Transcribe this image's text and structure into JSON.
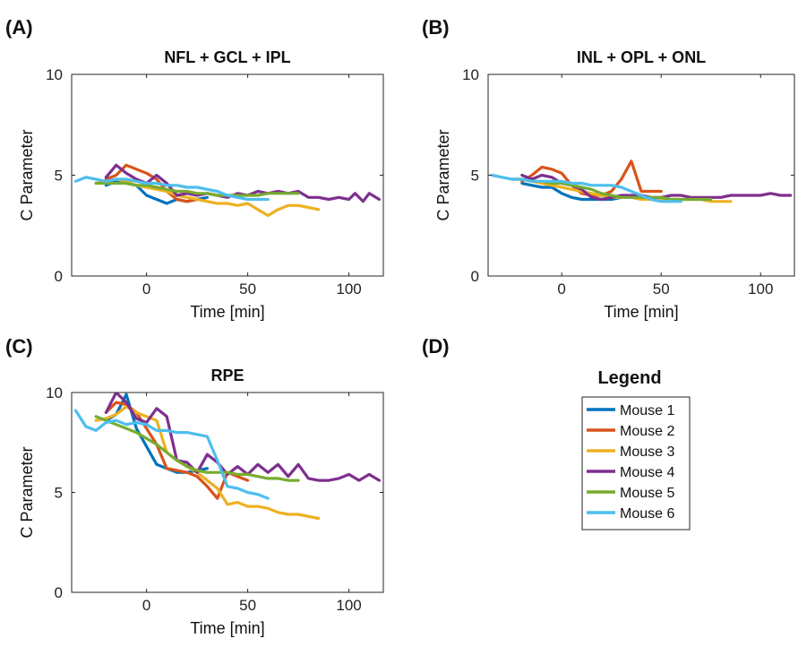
{
  "colors": {
    "Mouse 1": "#0072bd",
    "Mouse 2": "#d95319",
    "Mouse 3": "#edb120",
    "Mouse 4": "#7e2f8e",
    "Mouse 5": "#77ac30",
    "Mouse 6": "#4dbeee"
  },
  "legend": {
    "title": "Legend",
    "entries": [
      "Mouse 1",
      "Mouse 2",
      "Mouse 3",
      "Mouse 4",
      "Mouse 5",
      "Mouse 6"
    ]
  },
  "chart_data": [
    {
      "panel": "(A)",
      "type": "line",
      "title": "NFL + GCL + IPL",
      "xlabel": "Time [min]",
      "ylabel": "C Parameter",
      "xlim": [
        -37,
        117
      ],
      "ylim": [
        0,
        10
      ],
      "xticks": [
        0,
        50,
        100
      ],
      "yticks": [
        0,
        5,
        10
      ],
      "series": [
        {
          "name": "Mouse 1",
          "x": [
            -20,
            -15,
            -10,
            -5,
            0,
            5,
            10,
            15,
            20,
            25,
            30
          ],
          "y": [
            4.5,
            4.7,
            4.6,
            4.5,
            4.0,
            3.8,
            3.6,
            3.8,
            3.7,
            3.8,
            3.9
          ]
        },
        {
          "name": "Mouse 2",
          "x": [
            -20,
            -15,
            -10,
            -5,
            0,
            5,
            10,
            15,
            20,
            25
          ],
          "y": [
            4.8,
            5.0,
            5.5,
            5.3,
            5.1,
            4.8,
            4.2,
            3.8,
            3.7,
            3.8
          ]
        },
        {
          "name": "Mouse 3",
          "x": [
            -25,
            -20,
            -15,
            -10,
            -5,
            0,
            5,
            10,
            15,
            20,
            25,
            30,
            35,
            40,
            45,
            50,
            55,
            60,
            65,
            70,
            75,
            80,
            85
          ],
          "y": [
            4.6,
            4.7,
            4.8,
            4.7,
            4.5,
            4.4,
            4.3,
            4.2,
            4.0,
            3.9,
            3.8,
            3.7,
            3.6,
            3.6,
            3.5,
            3.6,
            3.3,
            3.0,
            3.3,
            3.5,
            3.5,
            3.4,
            3.3
          ]
        },
        {
          "name": "Mouse 4",
          "x": [
            -20,
            -15,
            -10,
            -5,
            0,
            5,
            10,
            15,
            20,
            25,
            30,
            35,
            40,
            45,
            50,
            55,
            60,
            65,
            70,
            75,
            80,
            85,
            90,
            95,
            100,
            103,
            107,
            110,
            115
          ],
          "y": [
            4.9,
            5.5,
            5.1,
            4.8,
            4.6,
            5.0,
            4.6,
            4.0,
            4.1,
            4.0,
            4.1,
            4.0,
            3.9,
            4.1,
            4.0,
            4.2,
            4.1,
            4.2,
            4.1,
            4.2,
            3.9,
            3.9,
            3.8,
            3.9,
            3.8,
            4.1,
            3.7,
            4.1,
            3.8
          ]
        },
        {
          "name": "Mouse 5",
          "x": [
            -25,
            -20,
            -15,
            -10,
            -5,
            0,
            5,
            10,
            15,
            20,
            25,
            30,
            35,
            40,
            45,
            50,
            55,
            60,
            65,
            70,
            75
          ],
          "y": [
            4.6,
            4.6,
            4.6,
            4.6,
            4.5,
            4.5,
            4.4,
            4.3,
            4.2,
            4.2,
            4.1,
            4.1,
            4.0,
            4.0,
            4.0,
            4.0,
            4.0,
            4.1,
            4.1,
            4.1,
            4.1
          ]
        },
        {
          "name": "Mouse 6",
          "x": [
            -35,
            -30,
            -25,
            -20,
            -15,
            -10,
            -5,
            0,
            5,
            10,
            15,
            20,
            25,
            30,
            35,
            40,
            45,
            50,
            55,
            60
          ],
          "y": [
            4.7,
            4.9,
            4.8,
            4.7,
            4.8,
            4.8,
            4.7,
            4.6,
            4.6,
            4.5,
            4.5,
            4.4,
            4.4,
            4.3,
            4.2,
            4.0,
            3.9,
            3.8,
            3.8,
            3.8
          ]
        }
      ]
    },
    {
      "panel": "(B)",
      "type": "line",
      "title": "INL + OPL + ONL",
      "xlabel": "Time [min]",
      "ylabel": "C Parameter",
      "xlim": [
        -37,
        117
      ],
      "ylim": [
        0,
        10
      ],
      "xticks": [
        0,
        50,
        100
      ],
      "yticks": [
        0,
        5,
        10
      ],
      "series": [
        {
          "name": "Mouse 1",
          "x": [
            -20,
            -15,
            -10,
            -5,
            0,
            5,
            10,
            15,
            20,
            25,
            30
          ],
          "y": [
            4.6,
            4.5,
            4.4,
            4.4,
            4.1,
            3.9,
            3.8,
            3.8,
            3.8,
            3.8,
            3.9
          ]
        },
        {
          "name": "Mouse 2",
          "x": [
            -20,
            -15,
            -10,
            -5,
            0,
            5,
            10,
            15,
            20,
            25,
            30,
            35,
            40,
            45,
            50
          ],
          "y": [
            4.7,
            5.0,
            5.4,
            5.3,
            5.1,
            4.5,
            4.1,
            4.0,
            4.0,
            4.2,
            4.8,
            5.7,
            4.2,
            4.2,
            4.2
          ]
        },
        {
          "name": "Mouse 3",
          "x": [
            -25,
            -20,
            -15,
            -10,
            -5,
            0,
            5,
            10,
            15,
            20,
            25,
            30,
            35,
            40,
            45,
            50,
            55,
            60,
            65,
            70,
            75,
            80,
            85
          ],
          "y": [
            4.8,
            4.8,
            4.7,
            4.6,
            4.5,
            4.4,
            4.3,
            4.2,
            4.1,
            4.0,
            3.9,
            3.9,
            3.9,
            3.8,
            3.8,
            3.8,
            3.8,
            3.8,
            3.8,
            3.8,
            3.7,
            3.7,
            3.7
          ]
        },
        {
          "name": "Mouse 4",
          "x": [
            -20,
            -15,
            -10,
            -5,
            0,
            5,
            10,
            15,
            20,
            25,
            30,
            35,
            40,
            45,
            50,
            55,
            60,
            65,
            70,
            75,
            80,
            85,
            90,
            95,
            100,
            105,
            110,
            115
          ],
          "y": [
            5.0,
            4.8,
            5.0,
            4.9,
            4.6,
            4.5,
            4.3,
            3.9,
            3.8,
            3.9,
            4.0,
            4.0,
            4.0,
            3.9,
            3.9,
            4.0,
            4.0,
            3.9,
            3.9,
            3.9,
            3.9,
            4.0,
            4.0,
            4.0,
            4.0,
            4.1,
            4.0,
            4.0
          ]
        },
        {
          "name": "Mouse 5",
          "x": [
            -25,
            -20,
            -15,
            -10,
            -5,
            0,
            5,
            10,
            15,
            20,
            25,
            30,
            35,
            40,
            45,
            50,
            55,
            60,
            65,
            70,
            75
          ],
          "y": [
            4.8,
            4.8,
            4.7,
            4.7,
            4.6,
            4.6,
            4.5,
            4.4,
            4.3,
            4.1,
            4.0,
            3.9,
            3.9,
            3.9,
            3.9,
            3.9,
            3.8,
            3.8,
            3.8,
            3.8,
            3.8
          ]
        },
        {
          "name": "Mouse 6",
          "x": [
            -35,
            -30,
            -25,
            -20,
            -15,
            -10,
            -5,
            0,
            5,
            10,
            15,
            20,
            25,
            30,
            35,
            40,
            45,
            50,
            55,
            60
          ],
          "y": [
            5.0,
            4.9,
            4.8,
            4.8,
            4.7,
            4.7,
            4.7,
            4.7,
            4.6,
            4.6,
            4.5,
            4.5,
            4.5,
            4.4,
            4.2,
            4.0,
            3.8,
            3.7,
            3.7,
            3.7
          ]
        }
      ]
    },
    {
      "panel": "(C)",
      "type": "line",
      "title": "RPE",
      "xlabel": "Time [min]",
      "ylabel": "C Parameter",
      "xlim": [
        -37,
        117
      ],
      "ylim": [
        0,
        10
      ],
      "xticks": [
        0,
        50,
        100
      ],
      "yticks": [
        0,
        5,
        10
      ],
      "series": [
        {
          "name": "Mouse 1",
          "x": [
            -20,
            -15,
            -10,
            -5,
            0,
            5,
            10,
            15,
            20,
            25,
            30
          ],
          "y": [
            8.6,
            8.9,
            9.9,
            8.2,
            7.3,
            6.4,
            6.2,
            6.0,
            6.0,
            6.1,
            6.2
          ]
        },
        {
          "name": "Mouse 2",
          "x": [
            -20,
            -15,
            -10,
            -5,
            0,
            5,
            10,
            15,
            20,
            25,
            30,
            35,
            40,
            45,
            50
          ],
          "y": [
            9.0,
            9.5,
            9.4,
            9.0,
            8.2,
            7.4,
            6.2,
            6.1,
            6.0,
            5.8,
            5.3,
            4.7,
            6.0,
            5.8,
            5.6
          ]
        },
        {
          "name": "Mouse 3",
          "x": [
            -25,
            -20,
            -15,
            -10,
            -5,
            0,
            5,
            10,
            15,
            20,
            25,
            30,
            35,
            40,
            45,
            50,
            55,
            60,
            65,
            70,
            75,
            80,
            85
          ],
          "y": [
            8.6,
            8.7,
            8.9,
            9.3,
            9.0,
            8.8,
            8.6,
            7.0,
            6.6,
            6.3,
            6.0,
            5.6,
            5.2,
            4.4,
            4.5,
            4.3,
            4.3,
            4.2,
            4.0,
            3.9,
            3.9,
            3.8,
            3.7
          ]
        },
        {
          "name": "Mouse 4",
          "x": [
            -20,
            -15,
            -10,
            -5,
            0,
            5,
            10,
            15,
            20,
            25,
            30,
            35,
            40,
            45,
            50,
            55,
            60,
            65,
            70,
            75,
            80,
            85,
            90,
            95,
            100,
            105,
            110,
            115
          ],
          "y": [
            9.0,
            10.0,
            9.5,
            8.7,
            8.5,
            9.2,
            8.8,
            6.6,
            6.5,
            6.0,
            6.9,
            6.5,
            5.9,
            6.3,
            5.9,
            6.4,
            6.0,
            6.4,
            5.8,
            6.4,
            5.7,
            5.6,
            5.6,
            5.7,
            5.9,
            5.6,
            5.9,
            5.6
          ]
        },
        {
          "name": "Mouse 5",
          "x": [
            -25,
            -20,
            -15,
            -10,
            -5,
            0,
            5,
            10,
            15,
            20,
            25,
            30,
            35,
            40,
            45,
            50,
            55,
            60,
            65,
            70,
            75
          ],
          "y": [
            8.8,
            8.6,
            8.4,
            8.2,
            8.0,
            7.7,
            7.4,
            7.0,
            6.6,
            6.3,
            6.1,
            6.0,
            6.0,
            6.0,
            5.9,
            5.9,
            5.8,
            5.7,
            5.7,
            5.6,
            5.6
          ]
        },
        {
          "name": "Mouse 6",
          "x": [
            -35,
            -30,
            -25,
            -20,
            -15,
            -10,
            -5,
            0,
            5,
            10,
            15,
            20,
            25,
            30,
            35,
            40,
            45,
            50,
            55,
            60
          ],
          "y": [
            9.1,
            8.3,
            8.1,
            8.5,
            8.6,
            8.4,
            8.5,
            8.4,
            8.1,
            8.1,
            8.0,
            8.0,
            7.9,
            7.8,
            6.6,
            5.3,
            5.2,
            5.0,
            4.9,
            4.7
          ]
        }
      ]
    }
  ]
}
